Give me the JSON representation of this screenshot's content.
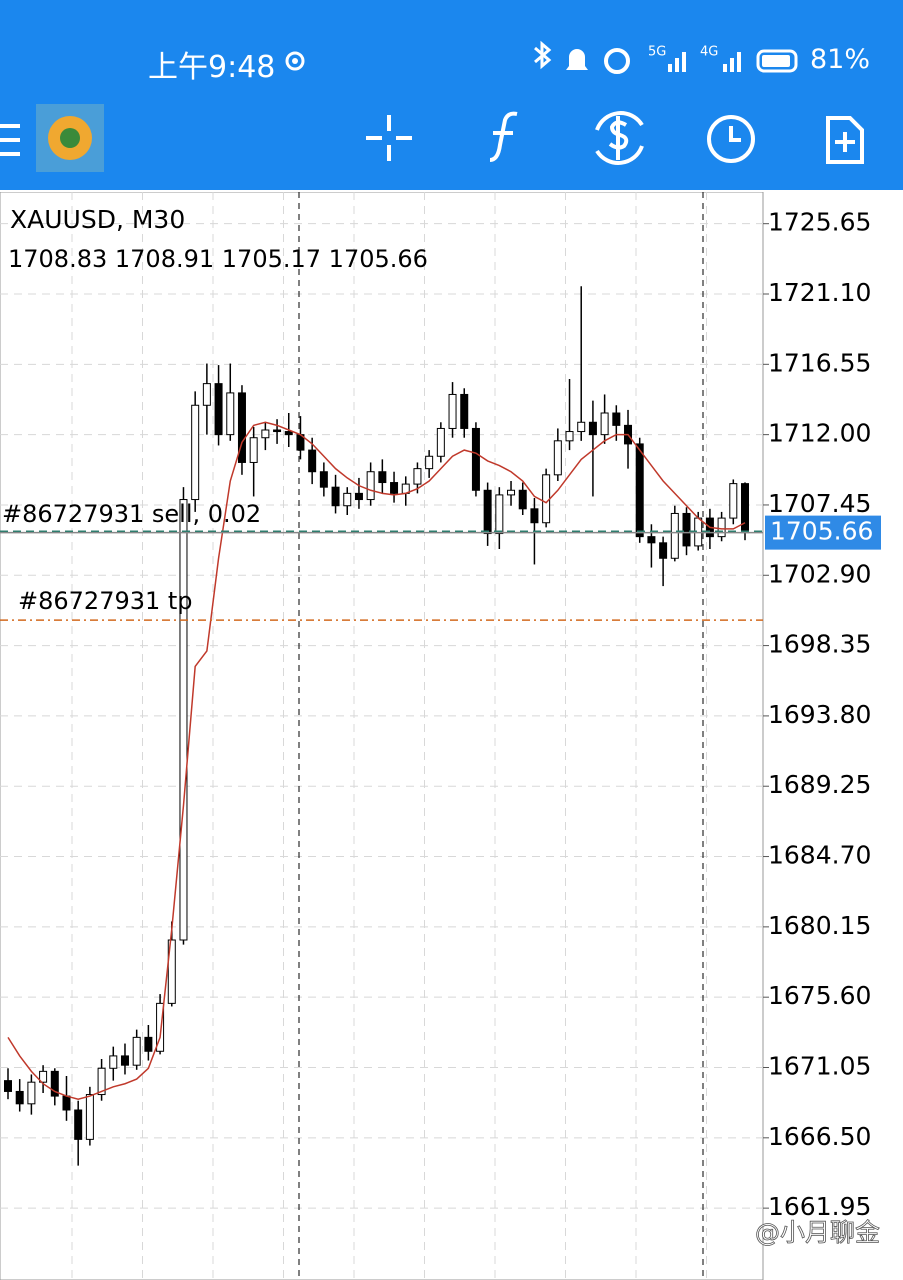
{
  "status_bar": {
    "time": "上午9:48",
    "battery": "81%"
  },
  "chart_data": {
    "type": "candlestick",
    "title": "XAUUSD, M30",
    "candles": [
      [
        1670.2,
        1671.0,
        1669.0,
        1669.5
      ],
      [
        1669.5,
        1670.3,
        1668.2,
        1668.7
      ],
      [
        1668.7,
        1670.6,
        1668.0,
        1670.1
      ],
      [
        1670.1,
        1671.2,
        1669.4,
        1670.8
      ],
      [
        1670.8,
        1671.0,
        1668.6,
        1669.2
      ],
      [
        1669.2,
        1670.5,
        1667.6,
        1668.3
      ],
      [
        1668.3,
        1668.9,
        1664.7,
        1666.4
      ],
      [
        1666.4,
        1669.8,
        1666.0,
        1669.3
      ],
      [
        1669.3,
        1671.6,
        1668.9,
        1671.0
      ],
      [
        1671.0,
        1672.4,
        1670.2,
        1671.8
      ],
      [
        1671.8,
        1672.6,
        1670.6,
        1671.2
      ],
      [
        1671.2,
        1673.5,
        1670.9,
        1673.0
      ],
      [
        1673.0,
        1673.8,
        1671.5,
        1672.1
      ],
      [
        1672.1,
        1675.8,
        1671.9,
        1675.2
      ],
      [
        1675.2,
        1680.5,
        1675.0,
        1679.3
      ],
      [
        1679.3,
        1708.6,
        1679.0,
        1707.8
      ],
      [
        1707.8,
        1714.8,
        1707.0,
        1713.9
      ],
      [
        1713.9,
        1716.6,
        1712.0,
        1715.3
      ],
      [
        1715.3,
        1716.5,
        1711.3,
        1712.0
      ],
      [
        1712.0,
        1716.6,
        1711.6,
        1714.7
      ],
      [
        1714.7,
        1715.2,
        1709.4,
        1710.2
      ],
      [
        1710.2,
        1712.5,
        1708.0,
        1711.8
      ],
      [
        1711.8,
        1712.8,
        1711.0,
        1712.3
      ],
      [
        1712.3,
        1713.0,
        1711.4,
        1712.2
      ],
      [
        1712.2,
        1713.4,
        1711.2,
        1712.0
      ],
      [
        1712.0,
        1713.2,
        1710.4,
        1711.0
      ],
      [
        1711.0,
        1711.8,
        1708.8,
        1709.6
      ],
      [
        1709.6,
        1710.2,
        1708.0,
        1708.6
      ],
      [
        1708.6,
        1709.4,
        1706.9,
        1707.4
      ],
      [
        1707.4,
        1708.6,
        1706.8,
        1708.2
      ],
      [
        1708.2,
        1709.2,
        1707.2,
        1707.8
      ],
      [
        1707.8,
        1710.2,
        1707.4,
        1709.6
      ],
      [
        1709.6,
        1710.4,
        1708.2,
        1708.9
      ],
      [
        1708.9,
        1709.6,
        1707.6,
        1708.2
      ],
      [
        1708.2,
        1709.3,
        1707.4,
        1708.8
      ],
      [
        1708.8,
        1710.2,
        1708.2,
        1709.8
      ],
      [
        1709.8,
        1711.0,
        1709.2,
        1710.6
      ],
      [
        1710.6,
        1712.8,
        1710.2,
        1712.4
      ],
      [
        1712.4,
        1715.4,
        1711.8,
        1714.6
      ],
      [
        1714.6,
        1715.0,
        1711.8,
        1712.4
      ],
      [
        1712.4,
        1712.8,
        1708.0,
        1708.4
      ],
      [
        1708.4,
        1708.9,
        1704.8,
        1705.6
      ],
      [
        1705.6,
        1708.6,
        1704.6,
        1708.1
      ],
      [
        1708.1,
        1709.0,
        1707.4,
        1708.4
      ],
      [
        1708.4,
        1708.9,
        1706.8,
        1707.2
      ],
      [
        1707.2,
        1707.9,
        1703.6,
        1706.3
      ],
      [
        1706.3,
        1709.8,
        1706.0,
        1709.4
      ],
      [
        1709.4,
        1712.4,
        1709.0,
        1711.6
      ],
      [
        1711.6,
        1715.6,
        1711.0,
        1712.2
      ],
      [
        1712.2,
        1721.6,
        1711.6,
        1712.8
      ],
      [
        1712.8,
        1714.2,
        1708.0,
        1712.0
      ],
      [
        1712.0,
        1714.6,
        1711.4,
        1713.4
      ],
      [
        1713.4,
        1713.9,
        1711.6,
        1712.6
      ],
      [
        1712.6,
        1713.6,
        1709.8,
        1711.4
      ],
      [
        1711.4,
        1711.8,
        1705.0,
        1705.4
      ],
      [
        1705.4,
        1706.2,
        1703.4,
        1705.0
      ],
      [
        1705.0,
        1705.4,
        1702.2,
        1704.0
      ],
      [
        1704.0,
        1707.4,
        1703.8,
        1706.9
      ],
      [
        1706.9,
        1707.3,
        1704.2,
        1704.8
      ],
      [
        1704.8,
        1707.0,
        1704.5,
        1706.6
      ],
      [
        1706.6,
        1707.2,
        1704.6,
        1705.4
      ],
      [
        1705.4,
        1707.0,
        1705.1,
        1706.6
      ],
      [
        1706.6,
        1709.1,
        1706.2,
        1708.83
      ],
      [
        1708.83,
        1708.91,
        1705.17,
        1705.66
      ]
    ],
    "ma": [
      1673.0,
      1671.8,
      1670.8,
      1670.0,
      1669.5,
      1669.2,
      1669.0,
      1669.2,
      1669.5,
      1669.8,
      1670.0,
      1670.3,
      1671.0,
      1673.0,
      1680.0,
      1688.0,
      1697.0,
      1698.0,
      1704.0,
      1709.0,
      1711.5,
      1712.6,
      1712.8,
      1712.6,
      1712.3,
      1712.0,
      1711.4,
      1710.6,
      1709.8,
      1709.2,
      1708.7,
      1708.4,
      1708.2,
      1708.1,
      1708.2,
      1708.5,
      1709.0,
      1709.8,
      1710.6,
      1711.0,
      1710.8,
      1710.3,
      1710.0,
      1709.6,
      1709.0,
      1708.0,
      1707.6,
      1708.4,
      1709.4,
      1710.4,
      1711.0,
      1711.6,
      1712.0,
      1712.0,
      1711.0,
      1710.0,
      1709.0,
      1708.2,
      1707.4,
      1706.6,
      1706.0,
      1705.9,
      1705.9,
      1706.3
    ],
    "ylim": [
      1657.3,
      1727.7
    ],
    "yticks": [
      1725.65,
      {
        "value": 1721.1,
        "label": "1721.10"
      },
      1716.55,
      {
        "value": 1712,
        "label": "1712.00"
      },
      1707.45,
      {
        "value": 1702.9,
        "label": "1702.90"
      },
      1698.35,
      {
        "value": 1693.8,
        "label": "1693.80"
      },
      1689.25,
      {
        "value": 1684.7,
        "label": "1684.70"
      },
      1680.15,
      {
        "value": 1675.6,
        "label": "1675.60"
      },
      1671.05,
      {
        "value": 1666.5,
        "label": "1666.50"
      },
      1661.95
    ],
    "grid": true,
    "up_color": "#ffffff",
    "down_color": "#000000",
    "ma_color": "#c0392b",
    "price_color": "#2f8ae6",
    "order": {
      "label": "#86727931 sell, 0.02",
      "price": 1705.75
    },
    "tp": {
      "label": "#86727931 tp",
      "price": 1700.0
    }
  },
  "watermark": "@小月聊金"
}
